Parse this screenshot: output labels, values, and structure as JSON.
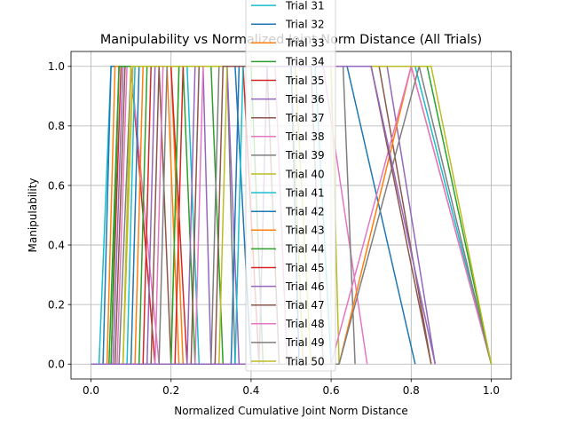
{
  "chart_data": {
    "type": "line",
    "title": "Manipulability vs Normalized Joint Norm Distance (All Trials)",
    "xlabel": "Normalized Cumulative Joint Norm Distance",
    "ylabel": "Manipulability",
    "xlim": [
      -0.05,
      1.05
    ],
    "ylim": [
      -0.05,
      1.05
    ],
    "xticks": [
      0.0,
      0.2,
      0.4,
      0.6,
      0.8,
      1.0
    ],
    "xtick_labels": [
      "0.0",
      "0.2",
      "0.4",
      "0.6",
      "0.8",
      "1.0"
    ],
    "yticks": [
      0.0,
      0.2,
      0.4,
      0.6,
      0.8,
      1.0
    ],
    "ytick_labels": [
      "0.0",
      "0.2",
      "0.4",
      "0.6",
      "0.8",
      "1.0"
    ],
    "grid": true,
    "legend_position": "upper-center",
    "series": [
      {
        "name": "Trial 31",
        "color": "#17becf",
        "x": [
          0.0,
          0.02,
          0.05,
          0.81,
          1.0
        ],
        "y": [
          0,
          0,
          1,
          1,
          0
        ]
      },
      {
        "name": "Trial 32",
        "color": "#1f77b4",
        "x": [
          0.0,
          0.03,
          0.05,
          0.64,
          0.81
        ],
        "y": [
          0,
          0,
          1,
          1,
          0
        ]
      },
      {
        "name": "Trial 33",
        "color": "#ff7f0e",
        "x": [
          0.0,
          0.04,
          0.06,
          0.2,
          0.23
        ],
        "y": [
          0,
          0,
          1,
          1,
          0
        ]
      },
      {
        "name": "Trial 34",
        "color": "#2ca02c",
        "x": [
          0.0,
          0.045,
          0.07,
          0.23,
          0.26
        ],
        "y": [
          0,
          0,
          1,
          1,
          0
        ]
      },
      {
        "name": "Trial 35",
        "color": "#d62728",
        "x": [
          0.0,
          0.05,
          0.075,
          0.1,
          0.16
        ],
        "y": [
          0,
          0,
          1,
          1,
          0
        ]
      },
      {
        "name": "Trial 36",
        "color": "#9467bd",
        "x": [
          0.0,
          0.055,
          0.08,
          0.28,
          0.3
        ],
        "y": [
          0,
          0,
          1,
          1,
          0
        ]
      },
      {
        "name": "Trial 37",
        "color": "#8c564b",
        "x": [
          0.0,
          0.06,
          0.085,
          0.17,
          0.2
        ],
        "y": [
          0,
          0,
          1,
          1,
          0
        ]
      },
      {
        "name": "Trial 38",
        "color": "#e377c2",
        "x": [
          0.0,
          0.065,
          0.09,
          0.1,
          0.17
        ],
        "y": [
          0,
          0,
          1,
          1,
          0
        ]
      },
      {
        "name": "Trial 39",
        "color": "#7f7f7f",
        "x": [
          0.0,
          0.07,
          0.1,
          0.34,
          0.36
        ],
        "y": [
          0,
          0,
          1,
          1,
          0
        ]
      },
      {
        "name": "Trial 40",
        "color": "#bcbd22",
        "x": [
          0.0,
          0.08,
          0.105,
          0.5,
          0.53
        ],
        "y": [
          0,
          0,
          1,
          1,
          0
        ]
      },
      {
        "name": "Trial 41",
        "color": "#17becf",
        "x": [
          0.0,
          0.09,
          0.11,
          0.24,
          0.27
        ],
        "y": [
          0,
          0,
          1,
          1,
          0
        ]
      },
      {
        "name": "Trial 42",
        "color": "#1f77b4",
        "x": [
          0.0,
          0.1,
          0.12,
          0.36,
          0.4
        ],
        "y": [
          0,
          0,
          1,
          1,
          0
        ]
      },
      {
        "name": "Trial 43",
        "color": "#ff7f0e",
        "x": [
          0.0,
          0.11,
          0.13,
          0.19,
          0.22
        ],
        "y": [
          0,
          0,
          1,
          1,
          0
        ]
      },
      {
        "name": "Trial 44",
        "color": "#2ca02c",
        "x": [
          0.0,
          0.12,
          0.14,
          0.3,
          0.33
        ],
        "y": [
          0,
          0,
          1,
          1,
          0
        ]
      },
      {
        "name": "Trial 45",
        "color": "#d62728",
        "x": [
          0.0,
          0.13,
          0.15,
          0.2,
          0.24
        ],
        "y": [
          0,
          0,
          1,
          1,
          0
        ]
      },
      {
        "name": "Trial 46",
        "color": "#9467bd",
        "x": [
          0.0,
          0.14,
          0.16,
          0.74,
          0.86
        ],
        "y": [
          0,
          0,
          1,
          1,
          0
        ]
      },
      {
        "name": "Trial 47",
        "color": "#8c564b",
        "x": [
          0.0,
          0.15,
          0.17,
          0.72,
          0.85
        ],
        "y": [
          0,
          0,
          1,
          1,
          0
        ]
      },
      {
        "name": "Trial 48",
        "color": "#e377c2",
        "x": [
          0.0,
          0.16,
          0.18,
          0.58,
          0.69
        ],
        "y": [
          0,
          0,
          1,
          1,
          0
        ]
      },
      {
        "name": "Trial 49",
        "color": "#7f7f7f",
        "x": [
          0.0,
          0.17,
          0.19,
          0.63,
          0.66
        ],
        "y": [
          0,
          0,
          1,
          1,
          0
        ]
      },
      {
        "name": "Trial 50",
        "color": "#bcbd22",
        "x": [
          0.0,
          0.2,
          0.22,
          0.51,
          0.55
        ],
        "y": [
          0,
          0,
          1,
          1,
          0
        ]
      },
      {
        "color": "#2ca02c",
        "x": [
          0.0,
          0.2,
          0.22,
          0.4,
          0.43
        ],
        "y": [
          0,
          0,
          1,
          1,
          0
        ]
      },
      {
        "color": "#d62728",
        "x": [
          0.0,
          0.21,
          0.23,
          0.38,
          0.42
        ],
        "y": [
          0,
          0,
          1,
          1,
          0
        ]
      },
      {
        "color": "#9467bd",
        "x": [
          0.0,
          0.24,
          0.26,
          0.34,
          0.37
        ],
        "y": [
          0,
          0,
          1,
          1,
          0
        ]
      },
      {
        "color": "#8c564b",
        "x": [
          0.0,
          0.25,
          0.27,
          0.44,
          0.47
        ],
        "y": [
          0,
          0,
          1,
          1,
          0
        ]
      },
      {
        "color": "#e377c2",
        "x": [
          0.0,
          0.26,
          0.28,
          0.46,
          0.49
        ],
        "y": [
          0,
          0,
          1,
          1,
          0
        ]
      },
      {
        "color": "#7f7f7f",
        "x": [
          0.0,
          0.3,
          0.32,
          0.55,
          0.58
        ],
        "y": [
          0,
          0,
          1,
          1,
          0
        ]
      },
      {
        "color": "#bcbd22",
        "x": [
          0.0,
          0.32,
          0.34,
          0.6,
          0.62
        ],
        "y": [
          0,
          0,
          1,
          1,
          0
        ]
      },
      {
        "color": "#1f77b4",
        "x": [
          0.0,
          0.35,
          0.37,
          0.5,
          0.52
        ],
        "y": [
          0,
          0,
          1,
          1,
          0
        ]
      },
      {
        "color": "#17becf",
        "x": [
          0.0,
          0.36,
          0.38,
          0.56,
          0.6
        ],
        "y": [
          0,
          0,
          1,
          1,
          0
        ]
      },
      {
        "color": "#ff7f0e",
        "x": [
          0.0,
          0.62,
          0.8,
          1.0
        ],
        "y": [
          0,
          0,
          1,
          0
        ]
      },
      {
        "color": "#e377c2",
        "x": [
          0.0,
          0.6,
          0.8,
          1.0
        ],
        "y": [
          0,
          0,
          1,
          0
        ]
      },
      {
        "color": "#7f7f7f",
        "x": [
          0.0,
          0.62,
          0.82,
          1.0
        ],
        "y": [
          0,
          0,
          1,
          0
        ]
      },
      {
        "color": "#2ca02c",
        "x": [
          0.0,
          0.05,
          0.07,
          0.84,
          1.0
        ],
        "y": [
          0,
          0,
          1,
          1,
          0
        ]
      },
      {
        "color": "#bcbd22",
        "x": [
          0.0,
          0.08,
          0.1,
          0.85,
          1.0
        ],
        "y": [
          0,
          0,
          1,
          1,
          0
        ]
      },
      {
        "color": "#8c564b",
        "x": [
          0.0,
          0.31,
          0.33,
          0.7,
          0.85
        ],
        "y": [
          0,
          0,
          1,
          1,
          0
        ]
      },
      {
        "color": "#9467bd",
        "x": [
          0.0,
          0.42,
          0.44,
          0.7,
          0.86
        ],
        "y": [
          0,
          0,
          1,
          1,
          0
        ]
      }
    ]
  }
}
